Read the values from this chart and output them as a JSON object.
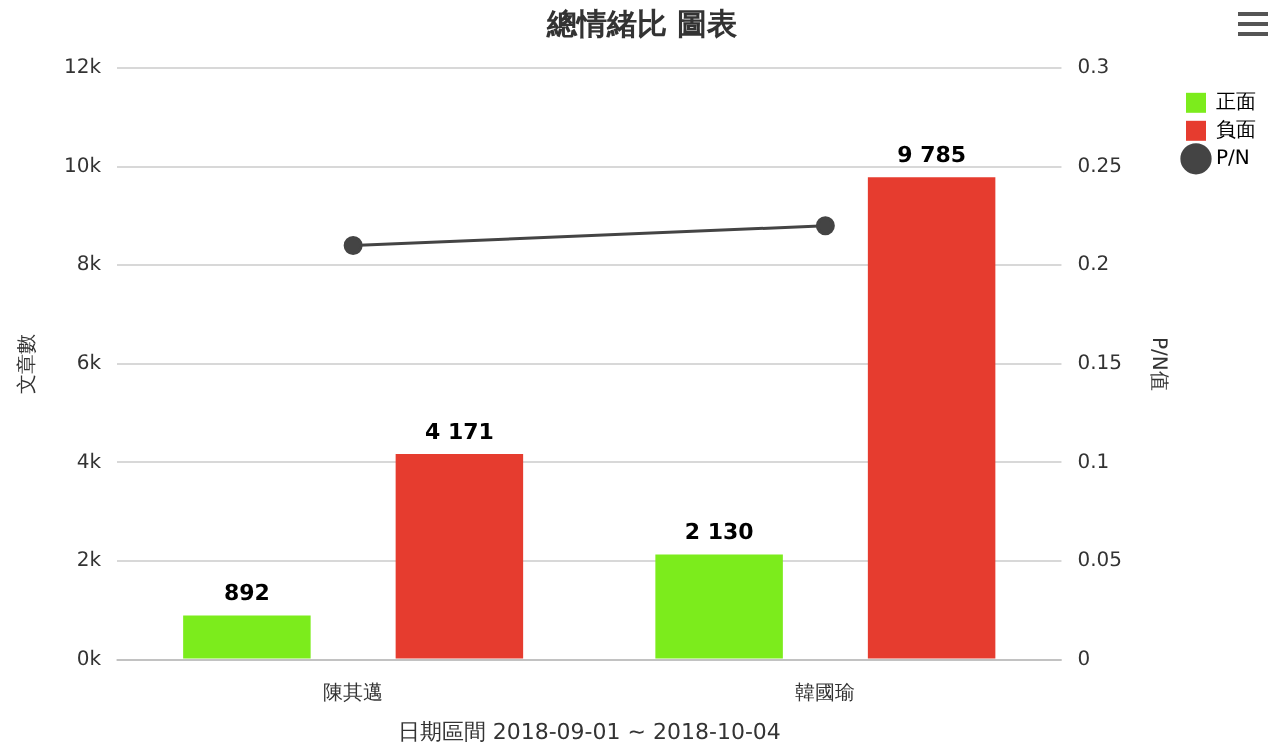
{
  "chart_data": {
    "type": "bar",
    "title": "總情緒比 圖表",
    "xlabel": "日期區間 2018-09-01 ~ 2018-10-04",
    "ylabel": "文章數",
    "y2label": "P/N值",
    "categories": [
      "陳其邁",
      "韓國瑜"
    ],
    "series": [
      {
        "name": "正面",
        "color": "#7cec1c",
        "values": [
          892,
          2130
        ],
        "value_labels": [
          "892",
          "2 130"
        ]
      },
      {
        "name": "負面",
        "color": "#e63c2f",
        "values": [
          4171,
          9785
        ],
        "value_labels": [
          "4 171",
          "9 785"
        ]
      },
      {
        "name": "P/N",
        "type": "line",
        "axis": "y2",
        "color": "#444444",
        "values": [
          0.21,
          0.22
        ],
        "marker": "circle"
      }
    ],
    "ylim": [
      0,
      12000
    ],
    "yticks": [
      {
        "value": 0,
        "label": "0k"
      },
      {
        "value": 2000,
        "label": "2k"
      },
      {
        "value": 4000,
        "label": "4k"
      },
      {
        "value": 6000,
        "label": "6k"
      },
      {
        "value": 8000,
        "label": "8k"
      },
      {
        "value": 10000,
        "label": "10k"
      },
      {
        "value": 12000,
        "label": "12k"
      }
    ],
    "y2lim": [
      0,
      0.3
    ],
    "y2ticks": [
      0,
      0.05,
      0.1,
      0.15,
      0.2,
      0.25,
      0.3
    ],
    "grid": "y",
    "legend": "top right"
  }
}
